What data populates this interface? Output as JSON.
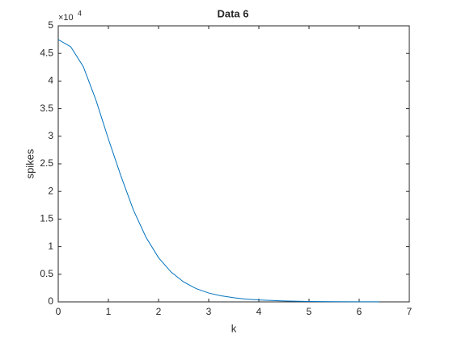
{
  "chart_data": {
    "type": "line",
    "title": "Data 6",
    "xlabel": "k",
    "ylabel": "spikes",
    "y_exponent": {
      "base": "×10",
      "power": "4"
    },
    "x": [
      0,
      0.25,
      0.5,
      0.75,
      1,
      1.25,
      1.5,
      1.75,
      2,
      2.25,
      2.5,
      2.75,
      3,
      3.25,
      3.5,
      3.75,
      4,
      4.5,
      5,
      5.5,
      6,
      6.4
    ],
    "series": [
      {
        "color": "#0072bd",
        "values": [
          4.75,
          4.62,
          4.26,
          3.66,
          2.95,
          2.28,
          1.66,
          1.17,
          0.8,
          0.54,
          0.36,
          0.24,
          0.16,
          0.11,
          0.075,
          0.05,
          0.035,
          0.017,
          0.008,
          0.004,
          0.002,
          0.001
        ]
      }
    ],
    "xlim": [
      0,
      7
    ],
    "xticks": [
      0,
      1,
      2,
      3,
      4,
      5,
      6,
      7
    ],
    "ylim": [
      0,
      5
    ],
    "yticks": [
      0,
      0.5,
      1,
      1.5,
      2,
      2.5,
      3,
      3.5,
      4,
      4.5,
      5
    ],
    "grid": false
  }
}
